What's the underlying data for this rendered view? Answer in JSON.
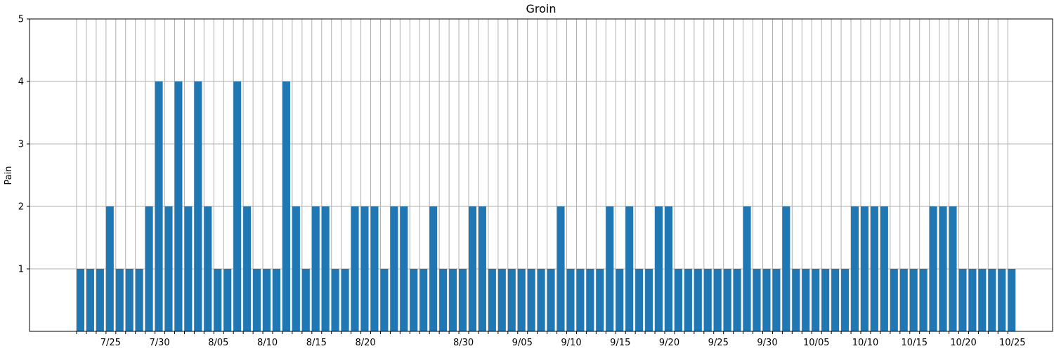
{
  "chart_data": {
    "type": "bar",
    "title": "Groin",
    "xlabel": "",
    "ylabel": "Pain",
    "ylim": [
      0,
      5
    ],
    "yticks": [
      1,
      2,
      3,
      4,
      5
    ],
    "grid": true,
    "bar_color": "#1f77b4",
    "grid_color": "#b0b0b0",
    "start_date": "2023-07-22",
    "values": [
      1,
      1,
      1,
      2,
      1,
      1,
      1,
      2,
      4,
      2,
      4,
      2,
      4,
      2,
      1,
      1,
      4,
      2,
      1,
      1,
      1,
      4,
      2,
      1,
      2,
      2,
      1,
      1,
      2,
      2,
      2,
      1,
      2,
      2,
      1,
      1,
      2,
      1,
      1,
      1,
      2,
      2,
      1,
      1,
      1,
      1,
      1,
      1,
      1,
      2,
      1,
      1,
      1,
      1,
      2,
      1,
      2,
      1,
      1,
      2,
      2,
      1,
      1,
      1,
      1,
      1,
      1,
      1,
      2,
      1,
      1,
      1,
      2,
      1,
      1,
      1,
      1,
      1,
      1,
      2,
      2,
      2,
      2,
      1,
      1,
      1,
      1,
      2,
      2,
      2,
      1,
      1,
      1,
      1,
      1,
      1
    ],
    "xtick_labels": [
      "7/25",
      "7/30",
      "8/05",
      "8/10",
      "8/15",
      "8/20",
      "8/30",
      "9/05",
      "9/10",
      "9/15",
      "9/20",
      "9/25",
      "9/30",
      "10/05",
      "10/10",
      "10/15",
      "10/20",
      "10/25"
    ]
  }
}
